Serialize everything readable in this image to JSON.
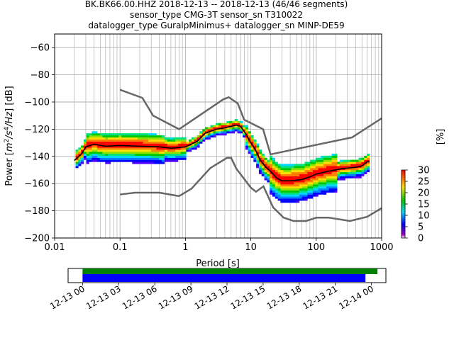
{
  "title_lines": [
    "BK.BK66.00.HHZ   2018-12-13 -- 2018-12-13  (46/46 segments)",
    "sensor_type CMG-3T sensor_sn T310022",
    "datalogger_type GuralpMinimus+ datalogger_sn MINP-DE59"
  ],
  "chart_data": {
    "type": "heatmap",
    "subtype": "probabilistic-power-spectral-density",
    "xlabel": "Period [s]",
    "ylabel": "Power [m²/s⁴/Hz] [dB]",
    "ylabel_parts": {
      "pre": "Power [",
      "m": "m",
      "sup2": "2",
      "mid": "/s",
      "sup4": "4",
      "hz": "/Hz",
      "post": "] [dB]"
    },
    "x_scale": "log",
    "xlim": [
      0.01,
      1000
    ],
    "x_ticks": [
      {
        "value": 0.01,
        "label": "0.01"
      },
      {
        "value": 0.1,
        "label": "0.1"
      },
      {
        "value": 1,
        "label": "1"
      },
      {
        "value": 10,
        "label": "10"
      },
      {
        "value": 100,
        "label": "100"
      },
      {
        "value": 1000,
        "label": "1000"
      }
    ],
    "ylim": [
      -200,
      -50
    ],
    "y_ticks": [
      {
        "value": -60,
        "label": "−60"
      },
      {
        "value": -80,
        "label": "−80"
      },
      {
        "value": -100,
        "label": "−100"
      },
      {
        "value": -120,
        "label": "−120"
      },
      {
        "value": -140,
        "label": "−140"
      },
      {
        "value": -160,
        "label": "−160"
      },
      {
        "value": -180,
        "label": "−180"
      },
      {
        "value": -200,
        "label": "−200"
      }
    ],
    "grid": true,
    "noise_models": [
      {
        "name": "NHNM",
        "color": "#666666",
        "points": [
          [
            0.1,
            -91
          ],
          [
            0.22,
            -97
          ],
          [
            0.32,
            -110
          ],
          [
            0.8,
            -120
          ],
          [
            3.8,
            -98
          ],
          [
            4.6,
            -96.5
          ],
          [
            6.3,
            -101
          ],
          [
            7.9,
            -113
          ],
          [
            15.4,
            -120
          ],
          [
            20,
            -138.5
          ],
          [
            354,
            -126
          ],
          [
            1000,
            -112
          ]
        ]
      },
      {
        "name": "NLNM",
        "color": "#666666",
        "points": [
          [
            0.1,
            -168
          ],
          [
            0.17,
            -166.7
          ],
          [
            0.4,
            -166.7
          ],
          [
            0.8,
            -169.2
          ],
          [
            1.24,
            -163.7
          ],
          [
            2.4,
            -148.6
          ],
          [
            4.3,
            -141.1
          ],
          [
            5,
            -141.1
          ],
          [
            6,
            -149
          ],
          [
            10,
            -163
          ],
          [
            12,
            -166
          ],
          [
            15.6,
            -162
          ],
          [
            21.9,
            -177.5
          ],
          [
            31.6,
            -185
          ],
          [
            45,
            -187.5
          ],
          [
            70,
            -187.5
          ],
          [
            101,
            -185
          ],
          [
            154,
            -185
          ],
          [
            328,
            -187.5
          ],
          [
            600,
            -184.4
          ],
          [
            1000,
            -178
          ]
        ]
      }
    ],
    "mean_curve": {
      "name": "mean",
      "color": "#000000",
      "points": [
        [
          0.02,
          -143
        ],
        [
          0.026,
          -138
        ],
        [
          0.03,
          -133
        ],
        [
          0.04,
          -131
        ],
        [
          0.06,
          -132.5
        ],
        [
          0.1,
          -132
        ],
        [
          0.2,
          -132.5
        ],
        [
          0.4,
          -133
        ],
        [
          0.6,
          -134
        ],
        [
          1,
          -133
        ],
        [
          1.5,
          -129
        ],
        [
          2,
          -123
        ],
        [
          3,
          -120
        ],
        [
          4,
          -119
        ],
        [
          6,
          -117
        ],
        [
          7,
          -118
        ],
        [
          8,
          -122
        ],
        [
          10,
          -130
        ],
        [
          12,
          -136
        ],
        [
          14,
          -143
        ],
        [
          17,
          -148
        ],
        [
          20,
          -151
        ],
        [
          25,
          -156
        ],
        [
          30,
          -158
        ],
        [
          40,
          -158
        ],
        [
          60,
          -157
        ],
        [
          80,
          -155
        ],
        [
          100,
          -153
        ],
        [
          150,
          -151
        ],
        [
          250,
          -149
        ],
        [
          400,
          -148
        ],
        [
          500,
          -147
        ],
        [
          600,
          -144
        ],
        [
          650,
          -144
        ]
      ]
    },
    "density_colorbar": {
      "label": "[%]",
      "range": [
        0,
        30
      ],
      "ticks": [
        0,
        5,
        10,
        15,
        20,
        25,
        30
      ],
      "colors": [
        "#ffffff",
        "#7a00b0",
        "#0000ff",
        "#00e0ff",
        "#00c800",
        "#ffe000",
        "#ff0000"
      ]
    }
  },
  "timeline": {
    "tick_labels": [
      "12-13 00",
      "12-13 03",
      "12-13 06",
      "12-13 09",
      "12-13 12",
      "12-13 15",
      "12-13 18",
      "12-13 21",
      "12-14 00"
    ],
    "range_hours": [
      -1.2,
      25.2
    ],
    "bars": [
      {
        "name": "data",
        "color": "#008000",
        "start_hour": 0,
        "end_hour": 24.5
      },
      {
        "name": "used",
        "color": "#0000ff",
        "start_hour": 0,
        "end_hour": 23.5
      }
    ]
  }
}
